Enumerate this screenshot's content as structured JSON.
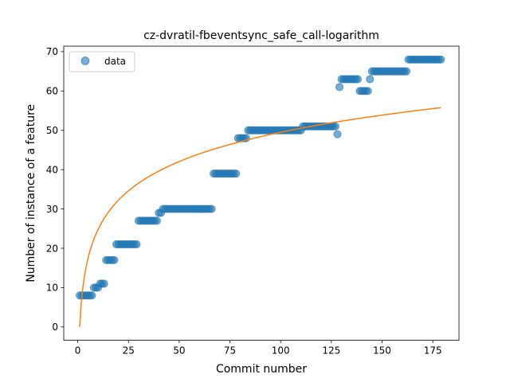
{
  "chart_data": {
    "type": "scatter",
    "title": "cz-dvratil-fbeventsync_safe_call-logarithm",
    "xlabel": "Commit number",
    "ylabel": "Number of instance of a feature",
    "xlim": [
      -6.9,
      187.9
    ],
    "ylim": [
      -3.4,
      71.4
    ],
    "xticks": [
      0,
      25,
      50,
      75,
      100,
      125,
      150,
      175
    ],
    "yticks": [
      0,
      10,
      20,
      30,
      40,
      50,
      60,
      70
    ],
    "grid": false,
    "legend": {
      "placement": "top-left",
      "entries": [
        "data"
      ]
    },
    "colors": {
      "data": "#1f77b4",
      "fit": "#ff7f0e"
    },
    "series": [
      {
        "name": "data",
        "kind": "scatter",
        "segments": [
          {
            "x_from": 1,
            "x_to": 7,
            "y": 8
          },
          {
            "x_from": 8,
            "x_to": 10,
            "y": 10
          },
          {
            "x_from": 11,
            "x_to": 13,
            "y": 11
          },
          {
            "x_from": 14,
            "x_to": 18,
            "y": 17
          },
          {
            "x_from": 19,
            "x_to": 29,
            "y": 21
          },
          {
            "x_from": 30,
            "x_to": 39,
            "y": 27
          },
          {
            "x_from": 40,
            "x_to": 41,
            "y": 29
          },
          {
            "x_from": 42,
            "x_to": 66,
            "y": 30
          },
          {
            "x_from": 67,
            "x_to": 78,
            "y": 39
          },
          {
            "x_from": 79,
            "x_to": 83,
            "y": 48
          },
          {
            "x_from": 84,
            "x_to": 110,
            "y": 50
          },
          {
            "x_from": 111,
            "x_to": 127,
            "y": 51
          },
          {
            "x_from": 128,
            "x_to": 128,
            "y": 49
          },
          {
            "x_from": 129,
            "x_to": 129,
            "y": 61
          },
          {
            "x_from": 130,
            "x_to": 138,
            "y": 63
          },
          {
            "x_from": 139,
            "x_to": 143,
            "y": 60
          },
          {
            "x_from": 144,
            "x_to": 144,
            "y": 63
          },
          {
            "x_from": 145,
            "x_to": 162,
            "y": 65
          },
          {
            "x_from": 163,
            "x_to": 179,
            "y": 68
          }
        ]
      },
      {
        "kind": "line",
        "formula": "y = a * ln(x)",
        "a": 10.75,
        "x_range": [
          1,
          179
        ]
      }
    ]
  }
}
